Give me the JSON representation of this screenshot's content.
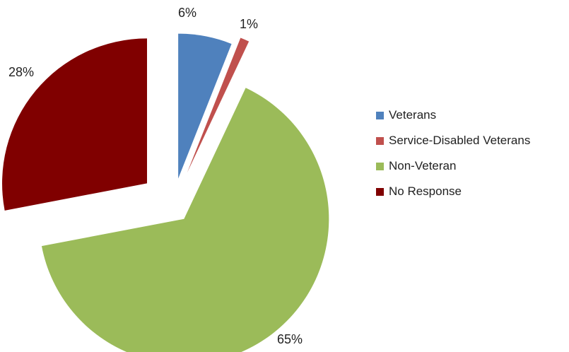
{
  "chart_data": {
    "type": "pie",
    "exploded": true,
    "legend_position": "right",
    "slices": [
      {
        "label": "Veterans",
        "value": 6,
        "display": "6%",
        "color": "#4F81BD"
      },
      {
        "label": "Service-Disabled Veterans",
        "value": 1,
        "display": "1%",
        "color": "#C0504D"
      },
      {
        "label": "Non-Veteran",
        "value": 65,
        "display": "65%",
        "color": "#9BBB59"
      },
      {
        "label": "No Response",
        "value": 28,
        "display": "28%",
        "color": "#800000"
      }
    ]
  }
}
